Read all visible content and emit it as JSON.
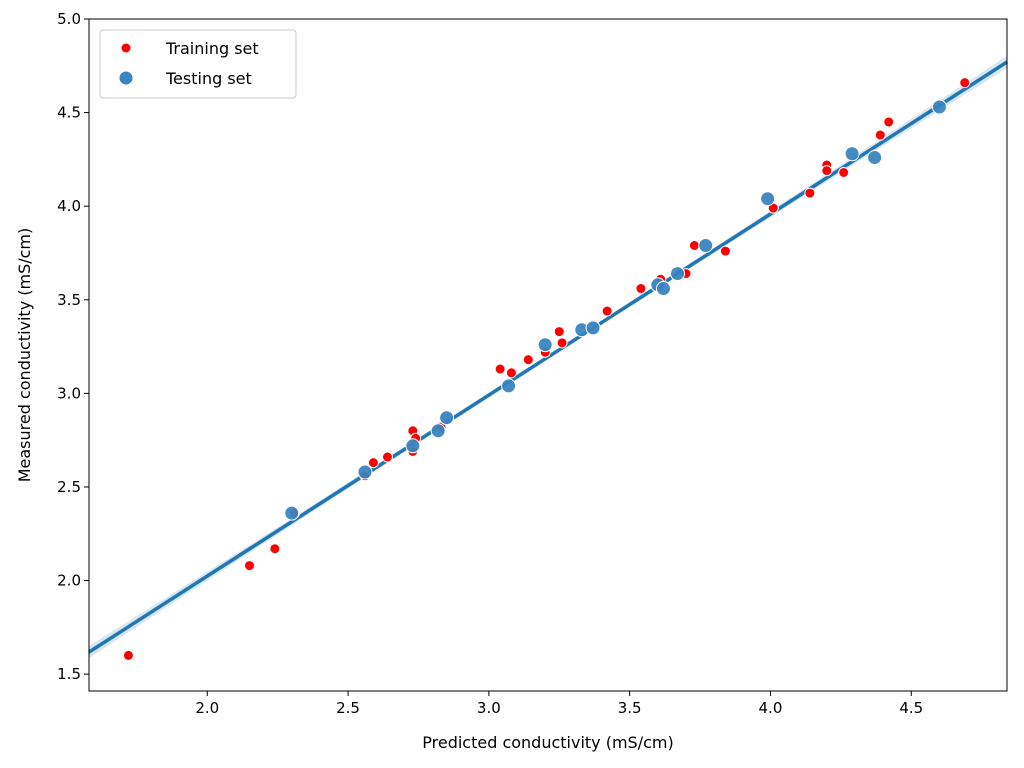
{
  "chart_data": {
    "type": "scatter",
    "xlabel": "Predicted conductivity (mS/cm)",
    "ylabel": "Measured conductivity (mS/cm)",
    "xlim": [
      1.58,
      4.84
    ],
    "ylim": [
      1.41,
      5.0
    ],
    "x_ticks": [
      2.0,
      2.5,
      3.0,
      3.5,
      4.0,
      4.5
    ],
    "y_ticks": [
      1.5,
      2.0,
      2.5,
      3.0,
      3.5,
      4.0,
      4.5,
      5.0
    ],
    "x_tick_labels": [
      "2.0",
      "2.5",
      "3.0",
      "3.5",
      "4.0",
      "4.5"
    ],
    "y_tick_labels": [
      "1.5",
      "2.0",
      "2.5",
      "3.0",
      "3.5",
      "4.0",
      "4.5",
      "5.0"
    ],
    "grid": false,
    "legend": {
      "placement": "top-left"
    },
    "series": [
      {
        "name": "Training set",
        "color": "#ff0000",
        "marker": "small-circle",
        "points": [
          [
            1.72,
            1.6
          ],
          [
            2.15,
            2.08
          ],
          [
            2.24,
            2.17
          ],
          [
            2.31,
            2.36
          ],
          [
            2.56,
            2.56
          ],
          [
            2.59,
            2.63
          ],
          [
            2.64,
            2.66
          ],
          [
            2.73,
            2.8
          ],
          [
            2.73,
            2.69
          ],
          [
            2.74,
            2.76
          ],
          [
            2.83,
            2.82
          ],
          [
            3.04,
            3.13
          ],
          [
            3.08,
            3.11
          ],
          [
            3.14,
            3.18
          ],
          [
            3.2,
            3.22
          ],
          [
            3.25,
            3.33
          ],
          [
            3.26,
            3.27
          ],
          [
            3.42,
            3.44
          ],
          [
            3.54,
            3.56
          ],
          [
            3.61,
            3.61
          ],
          [
            3.7,
            3.64
          ],
          [
            3.73,
            3.79
          ],
          [
            3.84,
            3.76
          ],
          [
            4.01,
            3.99
          ],
          [
            4.14,
            4.07
          ],
          [
            4.2,
            4.22
          ],
          [
            4.2,
            4.19
          ],
          [
            4.26,
            4.18
          ],
          [
            4.39,
            4.38
          ],
          [
            4.42,
            4.45
          ],
          [
            4.69,
            4.66
          ]
        ]
      },
      {
        "name": "Testing set",
        "color": "#3a84c0",
        "marker": "large-circle",
        "points": [
          [
            2.3,
            2.36
          ],
          [
            2.56,
            2.58
          ],
          [
            2.73,
            2.72
          ],
          [
            2.82,
            2.8
          ],
          [
            2.85,
            2.87
          ],
          [
            3.07,
            3.04
          ],
          [
            3.2,
            3.26
          ],
          [
            3.33,
            3.34
          ],
          [
            3.37,
            3.35
          ],
          [
            3.6,
            3.58
          ],
          [
            3.62,
            3.56
          ],
          [
            3.67,
            3.64
          ],
          [
            3.77,
            3.79
          ],
          [
            3.99,
            4.04
          ],
          [
            4.29,
            4.28
          ],
          [
            4.37,
            4.26
          ],
          [
            4.6,
            4.53
          ]
        ]
      }
    ],
    "regression_line": {
      "color": "#1f77b4",
      "slope": 0.967,
      "intercept": 0.09,
      "confidence_band": true
    }
  }
}
